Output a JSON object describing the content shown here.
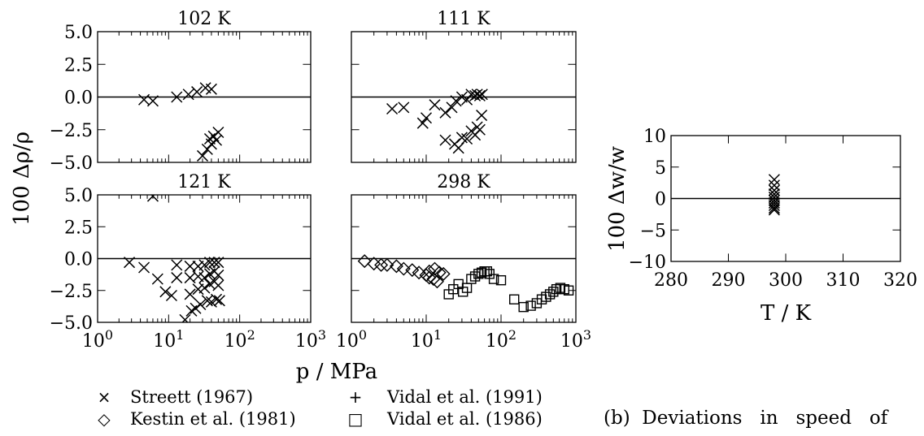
{
  "chart_data": [
    {
      "type": "scatter",
      "panel": "102 K",
      "title": "102 K",
      "xscale": "log",
      "xlim": [
        1,
        1000
      ],
      "ylim": [
        -5.0,
        5.0
      ],
      "yticks": [
        "5.0",
        "2.5",
        "0.0",
        "-2.5",
        "-5.0"
      ],
      "series": [
        {
          "name": "Streett (1967)",
          "marker": "x",
          "points": [
            [
              4.5,
              -0.2
            ],
            [
              6.0,
              -0.3
            ],
            [
              13.0,
              0.0
            ],
            [
              19.0,
              0.2
            ],
            [
              25.0,
              0.4
            ],
            [
              33.0,
              0.7
            ],
            [
              40.0,
              0.6
            ],
            [
              30.0,
              -4.5
            ],
            [
              35.0,
              -4.0
            ],
            [
              38.0,
              -3.2
            ],
            [
              40.0,
              -3.6
            ],
            [
              43.0,
              -3.0
            ],
            [
              47.0,
              -3.3
            ],
            [
              50.0,
              -2.7
            ]
          ]
        }
      ]
    },
    {
      "type": "scatter",
      "panel": "111 K",
      "title": "111 K",
      "xscale": "log",
      "xlim": [
        1,
        1000
      ],
      "ylim": [
        -5.0,
        5.0
      ],
      "series": [
        {
          "name": "Streett (1967)",
          "marker": "x",
          "points": [
            [
              3.5,
              -0.9
            ],
            [
              5.0,
              -0.8
            ],
            [
              9.0,
              -2.0
            ],
            [
              10.0,
              -1.6
            ],
            [
              13.0,
              -0.6
            ],
            [
              18.0,
              -1.2
            ],
            [
              22.0,
              -0.8
            ],
            [
              25.0,
              -0.3
            ],
            [
              30.0,
              0.0
            ],
            [
              35.0,
              -0.2
            ],
            [
              40.0,
              0.2
            ],
            [
              45.0,
              0.1
            ],
            [
              48.0,
              0.2
            ],
            [
              52.0,
              0.1
            ],
            [
              56.0,
              0.2
            ],
            [
              18.0,
              -3.3
            ],
            [
              24.0,
              -3.6
            ],
            [
              27.0,
              -3.9
            ],
            [
              30.0,
              -3.1
            ],
            [
              35.0,
              -3.2
            ],
            [
              40.0,
              -2.6
            ],
            [
              45.0,
              -2.9
            ],
            [
              48.0,
              -2.3
            ],
            [
              52.0,
              -2.5
            ],
            [
              55.0,
              -1.4
            ]
          ]
        }
      ]
    },
    {
      "type": "scatter",
      "panel": "121 K",
      "title": "121 K",
      "xscale": "log",
      "xlim": [
        1,
        1000
      ],
      "ylim": [
        -5.0,
        5.0
      ],
      "yticks": [
        "5.0",
        "2.5",
        "0.0",
        "-2.5",
        "-5.0"
      ],
      "xticks": [
        "10^0",
        "10^1",
        "10^2",
        "10^3"
      ],
      "series": [
        {
          "name": "Streett (1967)",
          "marker": "x",
          "points": [
            [
              2.8,
              -0.3
            ],
            [
              4.5,
              -0.7
            ],
            [
              7.0,
              -1.6
            ],
            [
              9.0,
              -2.6
            ],
            [
              11.0,
              -2.9
            ],
            [
              13.0,
              -0.5
            ],
            [
              13.0,
              -1.5
            ],
            [
              17.0,
              -4.8
            ],
            [
              20.0,
              -0.6
            ],
            [
              20.0,
              -1.5
            ],
            [
              20.0,
              -2.8
            ],
            [
              21.0,
              -4.1
            ],
            [
              24.0,
              -3.9
            ],
            [
              26.0,
              -0.6
            ],
            [
              26.0,
              -1.4
            ],
            [
              26.0,
              -2.4
            ],
            [
              28.0,
              -3.6
            ],
            [
              32.0,
              -0.5
            ],
            [
              32.0,
              -1.5
            ],
            [
              32.0,
              -2.3
            ],
            [
              35.0,
              -3.3
            ],
            [
              38.0,
              -0.3
            ],
            [
              38.0,
              -1.2
            ],
            [
              38.0,
              -2.0
            ],
            [
              40.0,
              -3.4
            ],
            [
              44.0,
              -0.3
            ],
            [
              44.0,
              -1.0
            ],
            [
              44.0,
              -1.8
            ],
            [
              47.0,
              -3.2
            ],
            [
              50.0,
              -0.3
            ],
            [
              50.0,
              -1.3
            ],
            [
              50.0,
              -2.1
            ],
            [
              52.0,
              -3.3
            ],
            [
              6.0,
              4.9
            ]
          ]
        }
      ]
    },
    {
      "type": "scatter",
      "panel": "298 K",
      "title": "298 K",
      "xscale": "log",
      "xlim": [
        1,
        1000
      ],
      "ylim": [
        -5.0,
        5.0
      ],
      "xticks": [
        "10^0",
        "10^1",
        "10^2",
        "10^3"
      ],
      "series": [
        {
          "name": "Kestin et al. (1981)",
          "marker": "diamond",
          "points": [
            [
              1.5,
              -0.2
            ],
            [
              2.0,
              -0.4
            ],
            [
              2.5,
              -0.5
            ],
            [
              3.0,
              -0.5
            ],
            [
              4.0,
              -0.6
            ],
            [
              5.0,
              -0.8
            ],
            [
              6.5,
              -0.9
            ],
            [
              8.0,
              -1.1
            ],
            [
              10.0,
              -1.3
            ],
            [
              11.0,
              -1.5
            ],
            [
              12.5,
              -1.6
            ],
            [
              14.0,
              -1.8
            ],
            [
              11.0,
              -1.0
            ],
            [
              13.0,
              -0.8
            ],
            [
              15.0,
              -1.1
            ],
            [
              17.0,
              -1.2
            ]
          ]
        },
        {
          "name": "Vidal et al. (1986)",
          "marker": "square",
          "points": [
            [
              20.0,
              -2.8
            ],
            [
              23.0,
              -2.4
            ],
            [
              27.0,
              -2.0
            ],
            [
              31.0,
              -2.6
            ],
            [
              35.0,
              -2.3
            ],
            [
              40.0,
              -1.6
            ],
            [
              45.0,
              -1.4
            ],
            [
              50.0,
              -1.2
            ],
            [
              55.0,
              -1.1
            ],
            [
              60.0,
              -1.0
            ],
            [
              65.0,
              -1.0
            ],
            [
              70.0,
              -1.2
            ],
            [
              80.0,
              -1.6
            ],
            [
              100.0,
              -1.7
            ],
            [
              150.0,
              -3.2
            ],
            [
              200.0,
              -3.8
            ],
            [
              250.0,
              -3.7
            ],
            [
              300.0,
              -3.5
            ],
            [
              350.0,
              -3.2
            ],
            [
              400.0,
              -3.0
            ],
            [
              450.0,
              -2.8
            ],
            [
              500.0,
              -2.6
            ],
            [
              550.0,
              -2.4
            ],
            [
              620.0,
              -2.3
            ],
            [
              700.0,
              -2.4
            ],
            [
              800.0,
              -2.5
            ]
          ]
        }
      ]
    },
    {
      "type": "scatter",
      "panel": "speed",
      "xlabel": "T / K",
      "ylabel": "100 Δw/w",
      "xlim": [
        280,
        320
      ],
      "ylim": [
        -10,
        10
      ],
      "xticks": [
        "280",
        "290",
        "300",
        "310",
        "320"
      ],
      "yticks": [
        "10",
        "5",
        "0",
        "−5",
        "−10"
      ],
      "series": [
        {
          "name": "Streett (1967)",
          "marker": "x",
          "points": [
            [
              298.0,
              3.0
            ],
            [
              298.0,
              2.1
            ],
            [
              298.0,
              1.3
            ],
            [
              298.0,
              0.7
            ],
            [
              298.0,
              0.2
            ],
            [
              298.0,
              -0.3
            ],
            [
              298.0,
              -0.7
            ],
            [
              298.0,
              -1.1
            ],
            [
              298.0,
              -1.5
            ],
            [
              298.0,
              -1.8
            ]
          ]
        }
      ]
    }
  ],
  "density_axes": {
    "ylabel": "100 Δρ/ρ",
    "xlabel": "p / MPa"
  },
  "legend": [
    {
      "marker": "×",
      "label": "Streett (1967)"
    },
    {
      "marker": "+",
      "label": "Vidal et al. (1991)"
    },
    {
      "marker": "◇",
      "label": "Kestin et al. (1981)"
    },
    {
      "marker": "□",
      "label": "Vidal et al. (1986)"
    }
  ],
  "caption": "(b)  Deviations   in   speed   of"
}
